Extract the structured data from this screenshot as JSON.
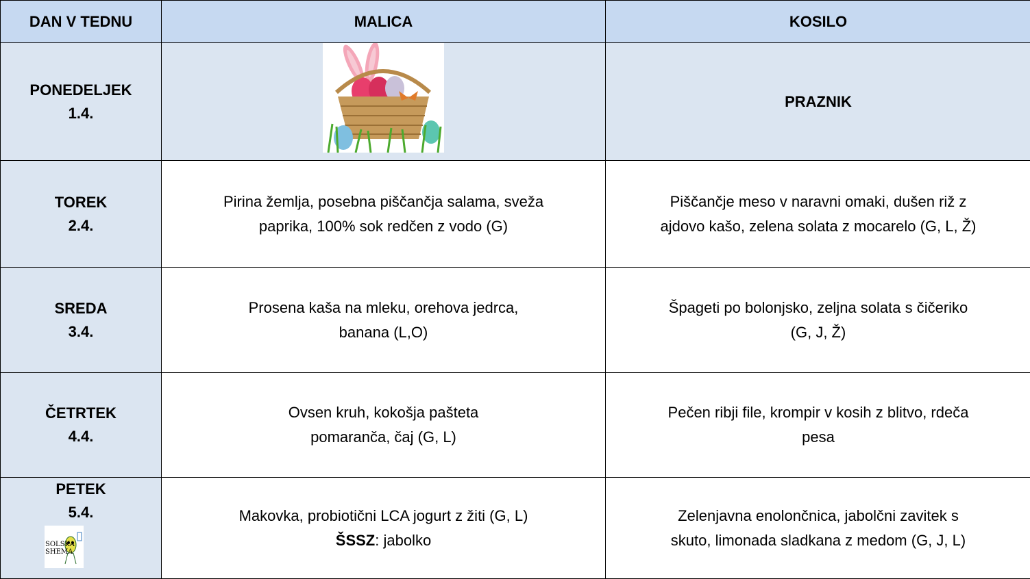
{
  "table": {
    "header": [
      "DAN V TEDNU",
      "MALICA",
      "KOSILO"
    ],
    "rows": [
      {
        "day": [
          "PONEDELJEK",
          "1.4."
        ],
        "malica": [],
        "kosilo": [
          "PRAZNIK"
        ]
      },
      {
        "day": [
          "TOREK",
          "2.4."
        ],
        "malica": [
          "Pirina žemlja, posebna piščančja salama, sveža",
          "paprika, 100% sok redčen z vodo (G)"
        ],
        "kosilo": [
          "Piščančje meso v naravni omaki, dušen riž z",
          "ajdovo kašo, zelena solata z mocarelo  (G, L, Ž)"
        ]
      },
      {
        "day": [
          "SREDA",
          "3.4."
        ],
        "malica": [
          "Prosena kaša na mleku, orehova jedrca,",
          "banana (L,O)"
        ],
        "kosilo": [
          "Špageti po bolonjsko, zeljna solata s čičeriko",
          "(G, J, Ž)"
        ]
      },
      {
        "day": [
          "ČETRTEK",
          "4.4."
        ],
        "malica": [
          "Ovsen kruh, kokošja pašteta",
          "pomaranča, čaj (G, L)"
        ],
        "kosilo": [
          "Pečen ribji file, krompir v kosih z blitvo, rdeča",
          "pesa"
        ]
      },
      {
        "day": [
          "PETEK",
          "5.4."
        ],
        "malica": [
          "Makovka, probiotični LCA jogurt z žiti (G, L)"
        ],
        "malica_extra": {
          "bold": "ŠSSZ",
          "rest": ": jabolko"
        },
        "kosilo": [
          "Zelenjavna enolončnica, jabolčni zavitek s",
          "skuto, limonada sladkana z medom (G, J, L)"
        ]
      }
    ],
    "logo": [
      "SOLSKA",
      "SHEMA"
    ]
  }
}
